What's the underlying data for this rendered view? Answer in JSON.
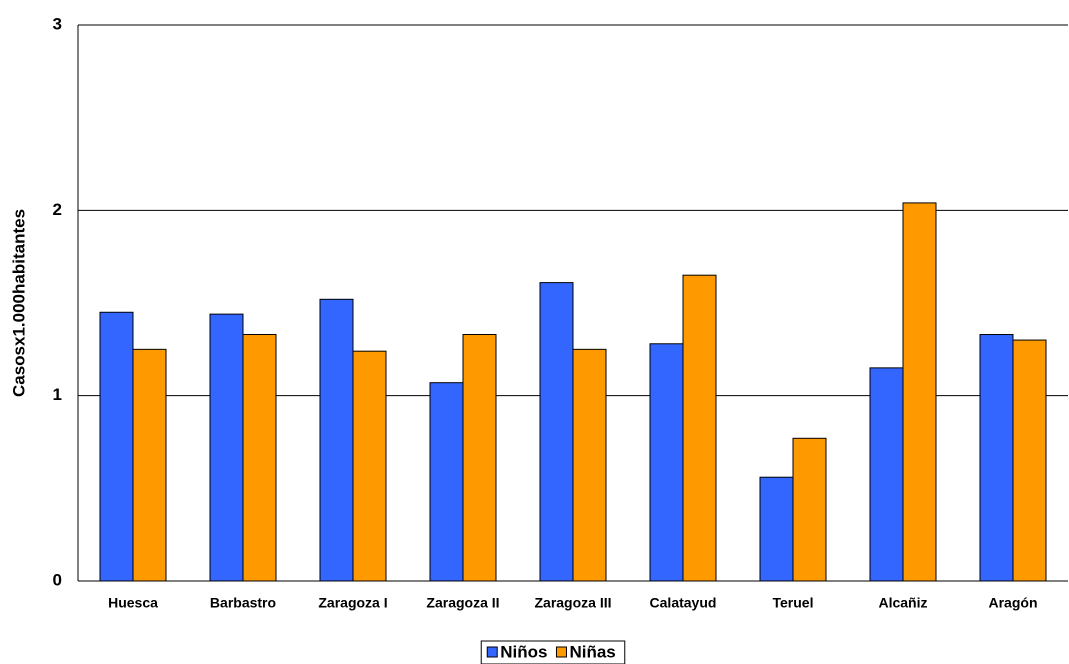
{
  "chart_data": {
    "type": "bar",
    "y_label": "Casosx1.000habitantes",
    "categories": [
      "Huesca",
      "Barbastro",
      "Zaragoza I",
      "Zaragoza II",
      "Zaragoza III",
      "Calatayud",
      "Teruel",
      "Alcañiz",
      "Aragón"
    ],
    "series": [
      {
        "name": "Niños",
        "color": "#3366ff",
        "values": [
          1.45,
          1.44,
          1.52,
          1.07,
          1.61,
          1.28,
          0.56,
          1.15,
          1.33
        ]
      },
      {
        "name": "Niñas",
        "color": "#ff9900",
        "values": [
          1.25,
          1.33,
          1.24,
          1.33,
          1.25,
          1.65,
          0.77,
          2.04,
          1.3
        ]
      }
    ],
    "ylim": [
      0,
      3
    ],
    "yticks": [
      0,
      1,
      2,
      3
    ],
    "grid": true,
    "legend": "bottom"
  }
}
